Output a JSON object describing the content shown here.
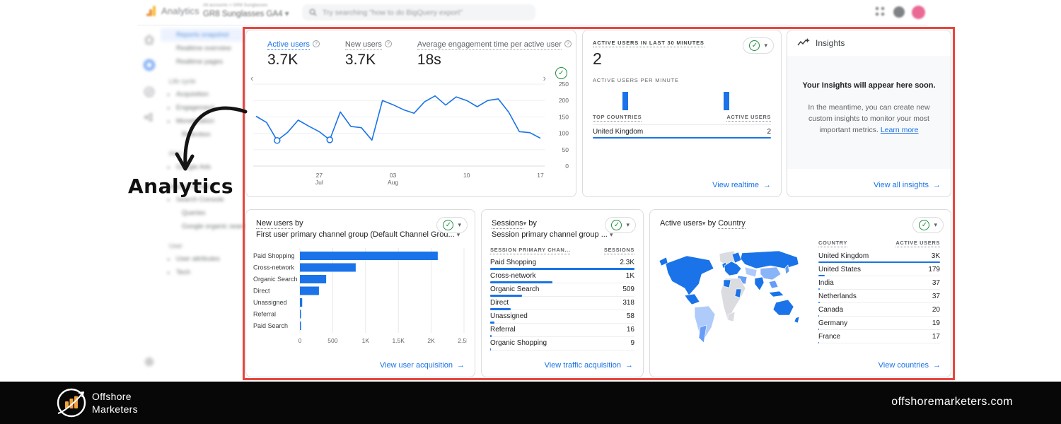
{
  "annotation": {
    "label": "Analytics"
  },
  "app_header": {
    "app_name": "Analytics",
    "breadcrumb": "All accounts > GR8 Sunglasses",
    "property": "GR8 Sunglasses GA4",
    "search_placeholder": "Try searching \"how to do BigQuery export\""
  },
  "sidebar": {
    "items": [
      {
        "label": "Reports snapshot",
        "kind": "active"
      },
      {
        "label": "Realtime overview"
      },
      {
        "label": "Realtime pages"
      },
      {
        "label": "Life cycle",
        "kind": "section"
      },
      {
        "label": "Acquisition",
        "arrow": true
      },
      {
        "label": "Engagement",
        "arrow": true
      },
      {
        "label": "Monetization",
        "arrow": true
      },
      {
        "label": "Retention",
        "indent": true
      },
      {
        "label": "PPC",
        "kind": "section"
      },
      {
        "label": "Google Ads",
        "arrow": true
      },
      {
        "label": "Search Console",
        "kind": "section"
      },
      {
        "label": "Search Console",
        "arrow": true
      },
      {
        "label": "Queries",
        "indent": true
      },
      {
        "label": "Google organic search tr...",
        "indent": true
      },
      {
        "label": "User",
        "kind": "section"
      },
      {
        "label": "User attributes",
        "arrow": true
      },
      {
        "label": "Tech",
        "arrow": true
      }
    ]
  },
  "overview_card": {
    "metrics": [
      {
        "label": "Active users",
        "value": "3.7K",
        "selected": true
      },
      {
        "label": "New users",
        "value": "3.7K",
        "selected": false
      },
      {
        "label": "Average engagement time per active user",
        "value": "18s",
        "selected": false
      }
    ]
  },
  "realtime_card": {
    "title": "ACTIVE USERS IN LAST 30 MINUTES",
    "value": "2",
    "per_minute_label": "ACTIVE USERS PER MINUTE",
    "col_country": "TOP COUNTRIES",
    "col_users": "ACTIVE USERS",
    "rows": [
      {
        "name": "United Kingdom",
        "value": "2",
        "bar": 1.0
      }
    ],
    "link": "View realtime"
  },
  "insights_card": {
    "title": "Insights",
    "headline": "Your Insights will appear here soon.",
    "body": "In the meantime, you can create new custom insights to monitor your most important metrics.",
    "inline_link": "Learn more",
    "link": "View all insights"
  },
  "new_users_card": {
    "metric": "New users",
    "suffix": " by",
    "dimension": "First user primary channel group (Default Channel Grou...",
    "link": "View user acquisition"
  },
  "sessions_card": {
    "metric": "Sessions",
    "suffix": " by",
    "dimension": "Session primary channel group ...",
    "col1": "SESSION PRIMARY CHAN...",
    "col2": "SESSIONS",
    "link": "View traffic acquisition"
  },
  "countries_card": {
    "metric": "Active users",
    "mid": " by ",
    "dimension": "Country",
    "col1": "COUNTRY",
    "col2": "ACTIVE USERS",
    "link": "View countries"
  },
  "footer": {
    "brand_line1": "Offshore",
    "brand_line2": "Marketers",
    "website": "offshoremarketers.com"
  },
  "chart_data": [
    {
      "id": "active-users-trend",
      "type": "line",
      "title": "Active users over time",
      "ylabel": "Active users",
      "ylim": [
        0,
        250
      ],
      "y_ticks": [
        0,
        50,
        100,
        150,
        200,
        250
      ],
      "x_ticks": [
        {
          "index": 6,
          "label": "27",
          "sub": "Jul"
        },
        {
          "index": 13,
          "label": "03",
          "sub": "Aug"
        },
        {
          "index": 20,
          "label": "10",
          "sub": ""
        },
        {
          "index": 27,
          "label": "17",
          "sub": ""
        }
      ],
      "values": [
        152,
        133,
        78,
        103,
        140,
        122,
        105,
        80,
        165,
        121,
        117,
        79,
        200,
        187,
        172,
        161,
        196,
        214,
        186,
        211,
        200,
        181,
        200,
        205,
        164,
        105,
        102,
        85
      ],
      "marked_points": [
        2,
        7
      ],
      "line_color": "#1a73e8",
      "grid": true,
      "legend": "none"
    },
    {
      "id": "realtime-per-minute",
      "type": "bar",
      "title": "Active users per minute",
      "minutes": 30,
      "bars": [
        {
          "minute": 5,
          "value": 1
        },
        {
          "minute": 22,
          "value": 1
        }
      ],
      "bar_color": "#1a73e8"
    },
    {
      "id": "new-users-by-channel",
      "type": "bar",
      "orientation": "horizontal",
      "title": "New users by first user primary channel group",
      "categories": [
        "Paid Shopping",
        "Cross-network",
        "Organic Search",
        "Direct",
        "Unassigned",
        "Referral",
        "Paid Search"
      ],
      "values": [
        2100,
        850,
        400,
        290,
        35,
        12,
        8
      ],
      "xlim": [
        0,
        2500
      ],
      "x_ticks": [
        "0",
        "500",
        "1K",
        "1.5K",
        "2K",
        "2.5K"
      ],
      "bar_color": "#1a73e8",
      "grid": true
    },
    {
      "id": "sessions-by-channel",
      "type": "table",
      "title": "Sessions by session primary channel group",
      "columns": [
        "SESSION PRIMARY CHAN...",
        "SESSIONS"
      ],
      "rows": [
        {
          "name": "Paid Shopping",
          "value": "2.3K",
          "bar": 1.0
        },
        {
          "name": "Cross-network",
          "value": "1K",
          "bar": 0.43
        },
        {
          "name": "Organic Search",
          "value": "509",
          "bar": 0.22
        },
        {
          "name": "Direct",
          "value": "318",
          "bar": 0.14
        },
        {
          "name": "Unassigned",
          "value": "58",
          "bar": 0.03
        },
        {
          "name": "Referral",
          "value": "16",
          "bar": 0.01
        },
        {
          "name": "Organic Shopping",
          "value": "9",
          "bar": 0.006
        }
      ]
    },
    {
      "id": "active-users-by-country",
      "type": "table",
      "title": "Active users by country",
      "columns": [
        "COUNTRY",
        "ACTIVE USERS"
      ],
      "rows": [
        {
          "name": "United Kingdom",
          "value": "3K",
          "bar": 1.0
        },
        {
          "name": "United States",
          "value": "179",
          "bar": 0.055
        },
        {
          "name": "India",
          "value": "37",
          "bar": 0.013
        },
        {
          "name": "Netherlands",
          "value": "37",
          "bar": 0.013
        },
        {
          "name": "Canada",
          "value": "20",
          "bar": 0.008
        },
        {
          "name": "Germany",
          "value": "19",
          "bar": 0.007
        },
        {
          "name": "France",
          "value": "17",
          "bar": 0.006
        }
      ]
    }
  ]
}
